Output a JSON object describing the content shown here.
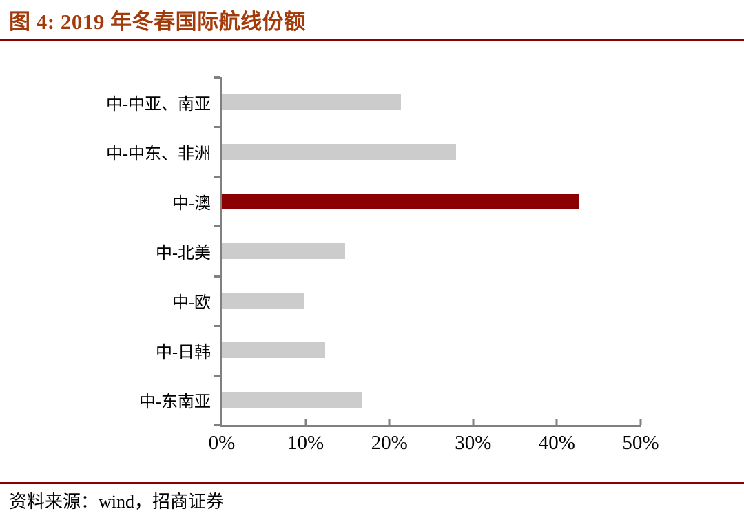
{
  "figure": {
    "title": "图 4: 2019 年冬春国际航线份额",
    "source": "资料来源：wind，招商证券"
  },
  "colors": {
    "title_text": "#A33A0A",
    "header_rule": "#8B0000",
    "footer_rule": "#8B0000",
    "bar_default": "#CCCCCC",
    "bar_highlight": "#8B0000",
    "axis": "#808080",
    "text": "#000000"
  },
  "chart_data": {
    "type": "bar",
    "orientation": "horizontal",
    "title": "图 4: 2019 年冬春国际航线份额",
    "categories": [
      "中-中亚、南亚",
      "中-中东、非洲",
      "中-澳",
      "中-北美",
      "中-欧",
      "中-日韩",
      "中-东南亚"
    ],
    "values": [
      21.4,
      28.0,
      42.6,
      14.7,
      9.8,
      12.3,
      16.8
    ],
    "unit": "%",
    "highlight_index": 2,
    "xlim": [
      0,
      50
    ],
    "x_tick_labels": [
      "0%",
      "10%",
      "20%",
      "30%",
      "40%",
      "50%"
    ],
    "x_tick_values": [
      0,
      10,
      20,
      30,
      40,
      50
    ],
    "grid": false,
    "legend": false,
    "source": "资料来源：wind，招商证券"
  }
}
